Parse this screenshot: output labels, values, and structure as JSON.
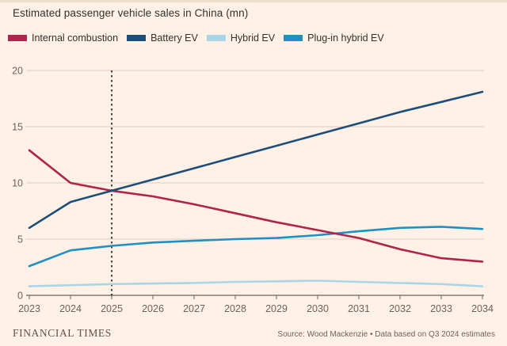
{
  "title": "Estimated passenger vehicle sales in China (mn)",
  "colors": {
    "background": "#fff1e5",
    "internal_combustion": "#b0234a",
    "battery_ev": "#1b4e7d",
    "hybrid_ev": "#a8d6e8",
    "plug_in_hybrid_ev": "#2090c4",
    "gridline": "#dccdbe",
    "axis": "#6b635b",
    "text": "#33302e",
    "vline": "#1a1a1a"
  },
  "legend": [
    {
      "label": "Internal combustion",
      "color": "#b0234a"
    },
    {
      "label": "Battery EV",
      "color": "#1b4e7d"
    },
    {
      "label": "Hybrid EV",
      "color": "#a8d6e8"
    },
    {
      "label": "Plug-in hybrid EV",
      "color": "#2090c4"
    }
  ],
  "chart_data": {
    "type": "line",
    "title": "Estimated passenger vehicle sales in China (mn)",
    "xlabel": "",
    "ylabel": "",
    "x": [
      2023,
      2024,
      2025,
      2026,
      2027,
      2028,
      2029,
      2030,
      2031,
      2032,
      2033,
      2034
    ],
    "series": [
      {
        "name": "Hybrid EV",
        "color": "#a8d6e8",
        "values": [
          0.8,
          0.9,
          1.0,
          1.05,
          1.1,
          1.2,
          1.25,
          1.3,
          1.2,
          1.1,
          1.0,
          0.8
        ]
      },
      {
        "name": "Plug-in hybrid EV",
        "color": "#2090c4",
        "values": [
          2.6,
          4.0,
          4.4,
          4.7,
          4.85,
          5.0,
          5.1,
          5.35,
          5.7,
          6.0,
          6.1,
          5.9
        ]
      },
      {
        "name": "Internal combustion",
        "color": "#b0234a",
        "values": [
          12.9,
          10.0,
          9.3,
          8.8,
          8.1,
          7.3,
          6.5,
          5.8,
          5.1,
          4.1,
          3.3,
          3.0
        ]
      },
      {
        "name": "Battery EV",
        "color": "#1b4e7d",
        "values": [
          6.0,
          8.3,
          9.3,
          10.3,
          11.3,
          12.3,
          13.3,
          14.3,
          15.3,
          16.3,
          17.2,
          18.1
        ]
      }
    ],
    "ylim": [
      0,
      20
    ],
    "yticks": [
      0,
      5,
      10,
      15,
      20
    ],
    "grid": true,
    "legend_position": "top",
    "vline": {
      "x": 2025,
      "style": "dashed"
    }
  },
  "footer": {
    "brand": "FINANCIAL TIMES",
    "source": "Source: Wood Mackenzie • Data based on Q3 2024 estimates"
  }
}
